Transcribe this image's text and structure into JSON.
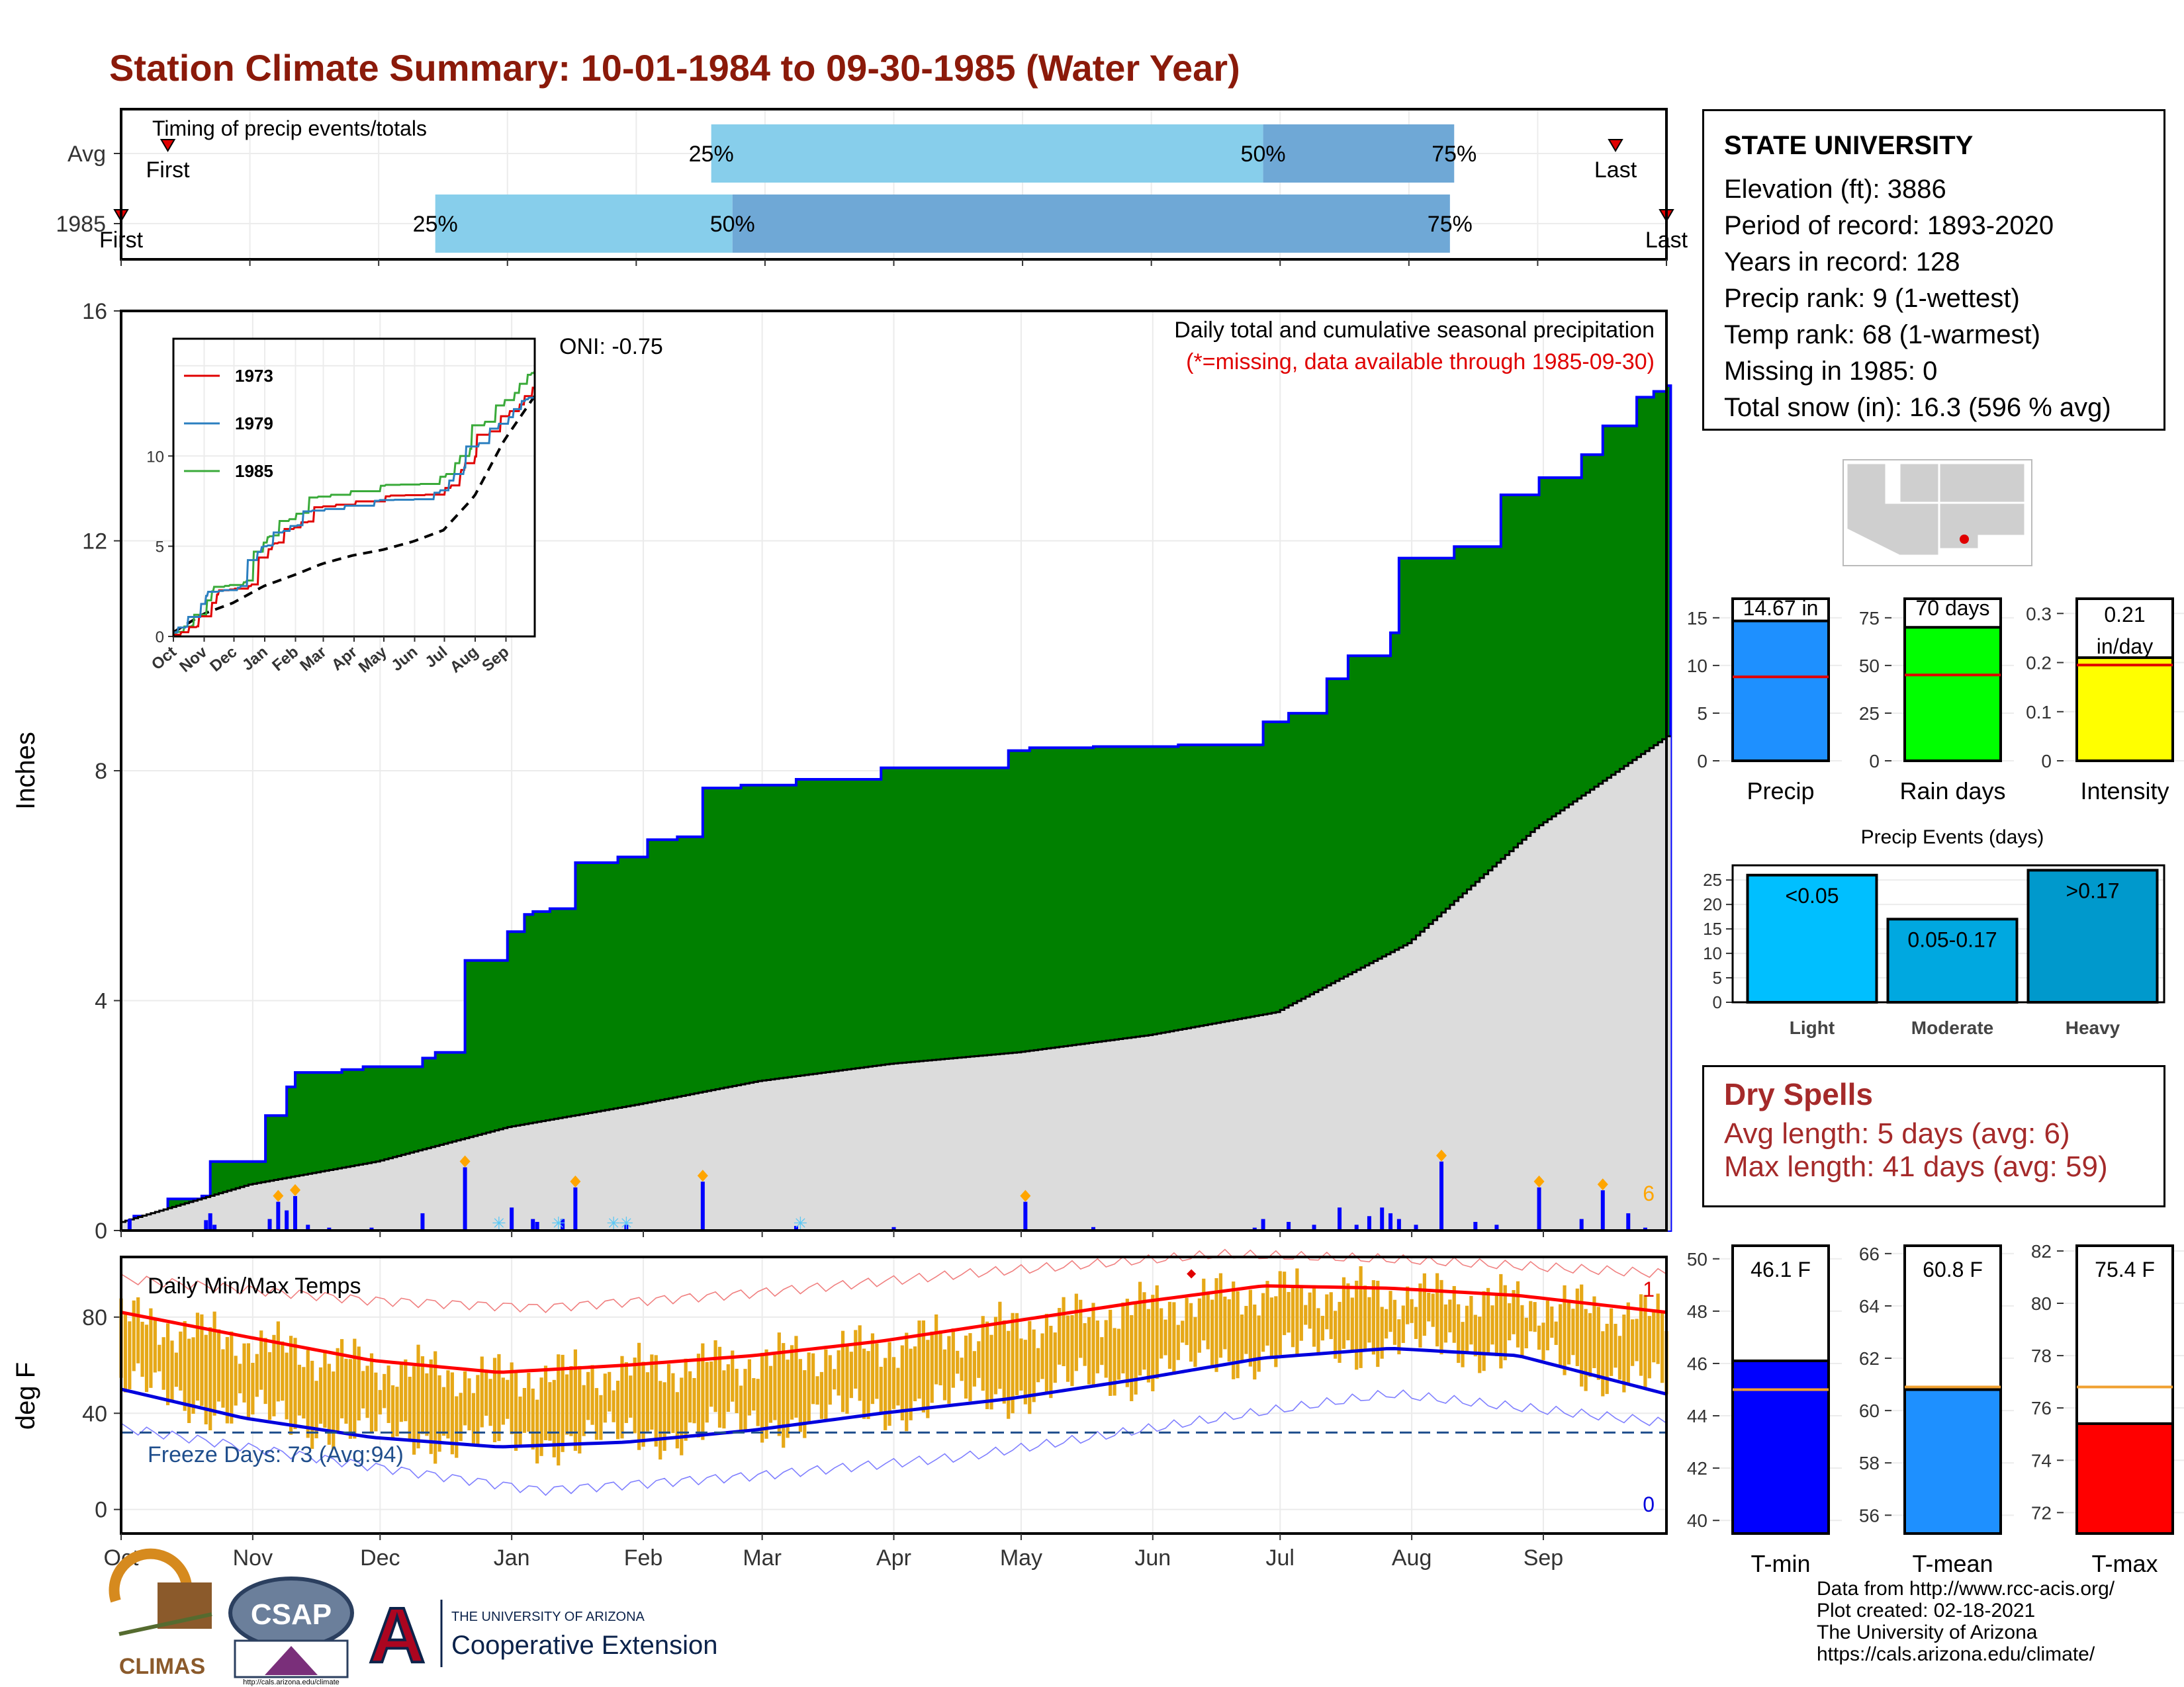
{
  "title": "Station Climate Summary: 10-01-1984 to 09-30-1985 (Water Year)",
  "timing": {
    "label": "Timing of precip events/totals",
    "rows": [
      {
        "name": "Avg",
        "first_label": "First",
        "last_label": "Last",
        "first_doy": 12,
        "p25": 140,
        "p50": 270,
        "p75": 315,
        "last_doy": 353
      },
      {
        "name": "1985",
        "first_label": "First",
        "last_label": "Last",
        "first_doy": 1,
        "p25": 75,
        "p50": 145,
        "p75": 314,
        "last_doy": 365
      }
    ],
    "pct_labels": [
      "25%",
      "50%",
      "75%"
    ]
  },
  "station": {
    "name": "STATE UNIVERSITY",
    "lines": [
      "Elevation (ft): 3886",
      "Period of record: 1893-2020",
      "Years in record: 128",
      "Precip rank: 9 (1-wettest)",
      "Temp rank: 68 (1-warmest)",
      "Missing in 1985: 0",
      "Total snow (in): 16.3 (596 % avg)"
    ]
  },
  "dry_spells": {
    "title": "Dry Spells",
    "avg_line": "Avg length: 5 days (avg: 6)",
    "max_line": "Max length: 41 days (avg: 59)"
  },
  "footer": [
    "Data from http://www.rcc-acis.org/",
    "Plot created: 02-18-2021",
    "The University of Arizona",
    "https://cals.arizona.edu/climate/"
  ],
  "logos": {
    "climas": "CLIMAS",
    "csap": "CSAP",
    "csap_url": "http://cals.arizona.edu/climate",
    "ua_letter": "A",
    "ua_small": "THE UNIVERSITY OF ARIZONA",
    "ua_big": "Cooperative Extension"
  },
  "colors": {
    "cum_fill": "#008000",
    "avg_fill": "#dcdcdc",
    "bar_daily": "#0000ff",
    "tmin": "#0000ff",
    "tmean": "#1e90ff",
    "tmax": "#ff0000",
    "precip_bar": "#1e90ff",
    "raindays_bar": "#00ff00",
    "intensity_bar": "#ffff00",
    "temp_range": "#e6a817",
    "timing_light": "#87ceeb",
    "timing_dark": "#6fa8d6"
  },
  "chart_data": [
    {
      "type": "area",
      "title": "Daily total and cumulative seasonal precipitation",
      "subtitle": "(*=missing, data available through 1985-09-30)",
      "annotation": "ONI: -0.75",
      "ylabel": "Inches",
      "ylim": [
        0,
        16
      ],
      "yticks": [
        0,
        4,
        8,
        12,
        16
      ],
      "x_months": [
        "Oct",
        "Nov",
        "Dec",
        "Jan",
        "Feb",
        "Mar",
        "Apr",
        "May",
        "Jun",
        "Jul",
        "Aug",
        "Sep"
      ],
      "x_month_start_doy": [
        1,
        32,
        62,
        93,
        124,
        152,
        183,
        213,
        244,
        274,
        305,
        336
      ],
      "right_count_label": "6",
      "series": [
        {
          "name": "1985",
          "x_doy": [
            1,
            4,
            12,
            20,
            22,
            35,
            40,
            42,
            45,
            50,
            53,
            58,
            65,
            72,
            75,
            82,
            92,
            96,
            98,
            102,
            108,
            118,
            125,
            132,
            138,
            147,
            160,
            180,
            210,
            215,
            230,
            250,
            270,
            276,
            285,
            290,
            300,
            302,
            315,
            326,
            335,
            345,
            350,
            358,
            362,
            365
          ],
          "values": [
            0.1,
            0.25,
            0.55,
            0.6,
            1.2,
            2.0,
            2.5,
            2.75,
            2.75,
            2.75,
            2.8,
            2.85,
            2.85,
            3.0,
            3.1,
            4.7,
            5.2,
            5.5,
            5.55,
            5.6,
            6.4,
            6.5,
            6.8,
            6.85,
            7.7,
            7.75,
            7.85,
            8.05,
            8.35,
            8.4,
            8.42,
            8.45,
            8.85,
            9.0,
            9.6,
            10.0,
            10.4,
            11.7,
            11.9,
            12.8,
            13.1,
            13.5,
            14.0,
            14.5,
            14.6,
            14.7
          ]
        },
        {
          "name": "Average",
          "x_doy": [
            1,
            31,
            61,
            92,
            123,
            151,
            182,
            212,
            243,
            273,
            304,
            334,
            365
          ],
          "values": [
            0.15,
            0.8,
            1.2,
            1.8,
            2.2,
            2.6,
            2.9,
            3.1,
            3.4,
            3.8,
            5.0,
            7.0,
            8.6
          ]
        }
      ],
      "daily_bars": [
        {
          "doy": 3,
          "value": 0.2
        },
        {
          "doy": 21,
          "value": 0.18
        },
        {
          "doy": 22,
          "value": 0.3
        },
        {
          "doy": 23,
          "value": 0.1
        },
        {
          "doy": 36,
          "value": 0.2
        },
        {
          "doy": 38,
          "value": 0.5
        },
        {
          "doy": 40,
          "value": 0.35
        },
        {
          "doy": 42,
          "value": 0.6
        },
        {
          "doy": 45,
          "value": 0.1
        },
        {
          "doy": 50,
          "value": 0.05
        },
        {
          "doy": 60,
          "value": 0.05
        },
        {
          "doy": 72,
          "value": 0.3
        },
        {
          "doy": 82,
          "value": 1.1
        },
        {
          "doy": 93,
          "value": 0.4
        },
        {
          "doy": 98,
          "value": 0.2
        },
        {
          "doy": 99,
          "value": 0.15
        },
        {
          "doy": 105,
          "value": 0.2
        },
        {
          "doy": 108,
          "value": 0.75
        },
        {
          "doy": 120,
          "value": 0.1
        },
        {
          "doy": 138,
          "value": 0.85
        },
        {
          "doy": 160,
          "value": 0.08
        },
        {
          "doy": 183,
          "value": 0.06
        },
        {
          "doy": 214,
          "value": 0.5
        },
        {
          "doy": 230,
          "value": 0.06
        },
        {
          "doy": 268,
          "value": 0.05
        },
        {
          "doy": 270,
          "value": 0.2
        },
        {
          "doy": 276,
          "value": 0.15
        },
        {
          "doy": 282,
          "value": 0.1
        },
        {
          "doy": 288,
          "value": 0.4
        },
        {
          "doy": 292,
          "value": 0.1
        },
        {
          "doy": 295,
          "value": 0.25
        },
        {
          "doy": 298,
          "value": 0.4
        },
        {
          "doy": 300,
          "value": 0.3
        },
        {
          "doy": 302,
          "value": 0.2
        },
        {
          "doy": 306,
          "value": 0.1
        },
        {
          "doy": 312,
          "value": 1.2
        },
        {
          "doy": 320,
          "value": 0.15
        },
        {
          "doy": 325,
          "value": 0.1
        },
        {
          "doy": 335,
          "value": 0.75
        },
        {
          "doy": 345,
          "value": 0.2
        },
        {
          "doy": 350,
          "value": 0.7
        },
        {
          "doy": 356,
          "value": 0.3
        },
        {
          "doy": 360,
          "value": 0.05
        }
      ]
    },
    {
      "type": "line",
      "title": "Daily Min/Max Temps",
      "annotation": "Freeze Days: 73 (Avg:94)",
      "ylabel": "deg F",
      "ylim": [
        -10,
        105
      ],
      "yticks": [
        0,
        40,
        80
      ],
      "freeze_line": 32,
      "x_months": [
        "Oct",
        "Nov",
        "Dec",
        "Jan",
        "Feb",
        "Mar",
        "Apr",
        "May",
        "Jun",
        "Jul",
        "Aug",
        "Sep"
      ],
      "x_month_start_doy": [
        1,
        32,
        62,
        93,
        124,
        152,
        183,
        213,
        244,
        274,
        305,
        336
      ],
      "record_high_count_label": "1",
      "record_low_count_label": "0",
      "series": [
        {
          "name": "Avg Max",
          "x_doy": [
            1,
            30,
            60,
            90,
            120,
            150,
            180,
            210,
            240,
            270,
            300,
            330,
            365
          ],
          "values": [
            82,
            72,
            62,
            57,
            60,
            64,
            70,
            78,
            86,
            93,
            92,
            89,
            82
          ]
        },
        {
          "name": "Avg Min",
          "x_doy": [
            1,
            30,
            60,
            90,
            120,
            150,
            180,
            210,
            240,
            270,
            300,
            330,
            365
          ],
          "values": [
            50,
            38,
            30,
            26,
            28,
            33,
            40,
            46,
            54,
            63,
            67,
            64,
            48
          ]
        },
        {
          "name": "Record Max",
          "x_doy": [
            1,
            60,
            100,
            150,
            200,
            260,
            300,
            365
          ],
          "values": [
            96,
            87,
            84,
            90,
            98,
            106,
            104,
            98
          ]
        },
        {
          "name": "Record Min",
          "x_doy": [
            1,
            60,
            100,
            150,
            200,
            260,
            300,
            365
          ],
          "values": [
            34,
            18,
            8,
            14,
            22,
            38,
            48,
            36
          ]
        }
      ]
    },
    {
      "type": "bar",
      "categories": [
        "Precip"
      ],
      "values": [
        14.67
      ],
      "value_label": "14.67 in",
      "avg": 8.8,
      "ylim": [
        0,
        17
      ],
      "yticks": [
        0,
        5,
        10,
        15
      ]
    },
    {
      "type": "bar",
      "categories": [
        "Rain days"
      ],
      "values": [
        70
      ],
      "value_label": "70 days",
      "avg": 45,
      "ylim": [
        0,
        85
      ],
      "yticks": [
        0,
        25,
        50,
        75
      ]
    },
    {
      "type": "bar",
      "categories": [
        "Intensity"
      ],
      "values": [
        0.21
      ],
      "value_label": "0.21 in/day",
      "avg": 0.195,
      "ylim": [
        0,
        0.33
      ],
      "yticks": [
        0.0,
        0.1,
        0.2,
        0.3
      ]
    },
    {
      "type": "bar",
      "title": "Precip Events (days)",
      "categories": [
        "Light",
        "Moderate",
        "Heavy"
      ],
      "bar_labels": [
        "<0.05",
        "0.05-0.17",
        ">0.17"
      ],
      "values": [
        26,
        17,
        27
      ],
      "ylim": [
        0,
        28
      ],
      "yticks": [
        0,
        5,
        10,
        15,
        20,
        25
      ]
    },
    {
      "type": "bar",
      "categories": [
        "T-min"
      ],
      "values": [
        46.1
      ],
      "value_label": "46.1 F",
      "avg": 45.0,
      "ylim": [
        39.5,
        50.5
      ],
      "yticks": [
        40,
        42,
        44,
        46,
        48,
        50
      ]
    },
    {
      "type": "bar",
      "categories": [
        "T-mean"
      ],
      "values": [
        60.8
      ],
      "value_label": "60.8 F",
      "avg": 60.9,
      "ylim": [
        55.3,
        66.3
      ],
      "yticks": [
        56,
        58,
        60,
        62,
        64,
        66
      ]
    },
    {
      "type": "bar",
      "categories": [
        "T-max"
      ],
      "values": [
        75.4
      ],
      "value_label": "75.4 F",
      "avg": 76.8,
      "ylim": [
        71.2,
        82.2
      ],
      "yticks": [
        72,
        74,
        76,
        78,
        80,
        82
      ]
    }
  ]
}
